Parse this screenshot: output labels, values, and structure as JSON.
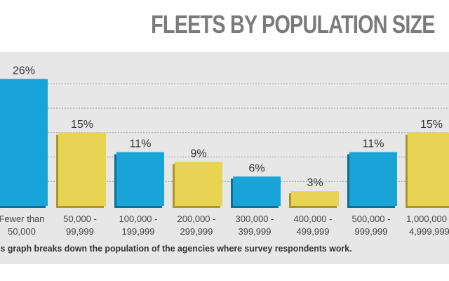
{
  "chart_data": {
    "type": "bar",
    "title": "FLEETS BY POPULATION SIZE",
    "categories": [
      [
        "Fewer than",
        "50,000"
      ],
      [
        "50,000 -",
        "99,999"
      ],
      [
        "100,000 -",
        "199,999"
      ],
      [
        "200,000 -",
        "299,999"
      ],
      [
        "300,000 -",
        "399,999"
      ],
      [
        "400,000 -",
        "499,999"
      ],
      [
        "500,000 -",
        "999,999"
      ],
      [
        "1,000,000 -",
        "4,999,999"
      ]
    ],
    "values": [
      26,
      15,
      11,
      9,
      6,
      3,
      11,
      15
    ],
    "data_labels": [
      "26%",
      "15%",
      "11%",
      "9%",
      "6%",
      "3%",
      "11%",
      "15%"
    ],
    "ylim": [
      0,
      30
    ],
    "grid": true,
    "grid_step": 5,
    "colors": [
      "#18a4d6",
      "#e8d352",
      "#18a4d6",
      "#e8d352",
      "#18a4d6",
      "#e8d352",
      "#18a4d6",
      "#e8d352"
    ],
    "caption": "This graph breaks down the population of the agencies where survey respondents work."
  }
}
